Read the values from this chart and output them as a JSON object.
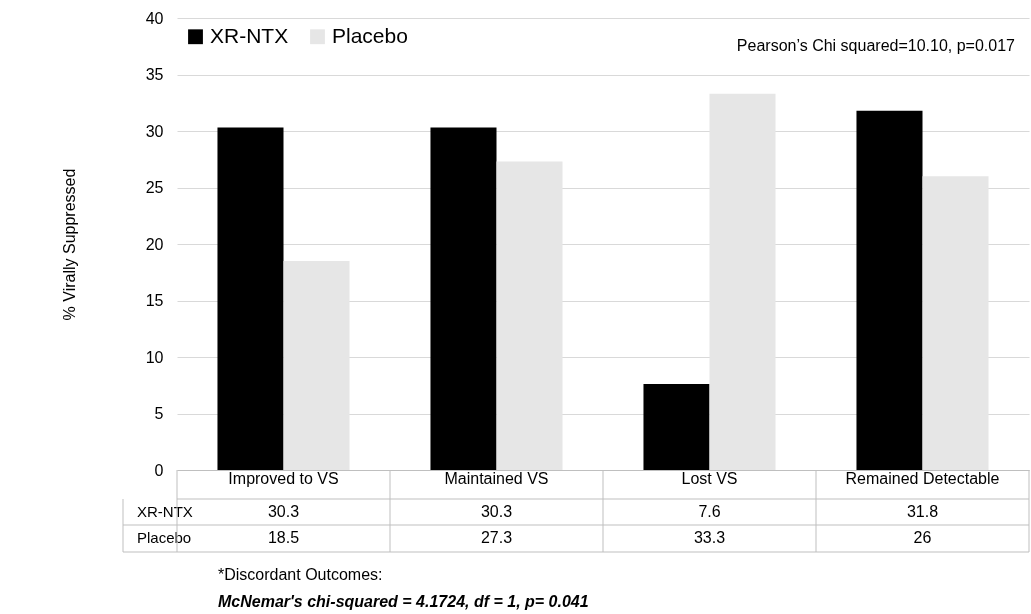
{
  "chart_data": {
    "type": "bar",
    "ylabel": "% Virally Suppressed",
    "categories": [
      "Improved to VS",
      "Maintained VS",
      "Lost VS",
      "Remained Detectable"
    ],
    "series": [
      {
        "name": "XR-NTX",
        "color": "#000000",
        "values": [
          30.3,
          30.3,
          7.6,
          31.8
        ]
      },
      {
        "name": "Placebo",
        "color": "#e6e6e6",
        "values": [
          18.5,
          27.3,
          33.3,
          26
        ]
      }
    ],
    "ylim": [
      0,
      40
    ],
    "yticks": [
      0,
      5,
      10,
      15,
      20,
      25,
      30,
      35,
      40
    ],
    "grid": "y",
    "legend": "top left",
    "data_labels": true,
    "annotations": [
      "Pearson’s Chi squared=10.10, p=0.017",
      "*Discordant Outcomes:",
      "McNemar's chi-squared = 4.1724, df = 1, p= 0.041"
    ]
  }
}
